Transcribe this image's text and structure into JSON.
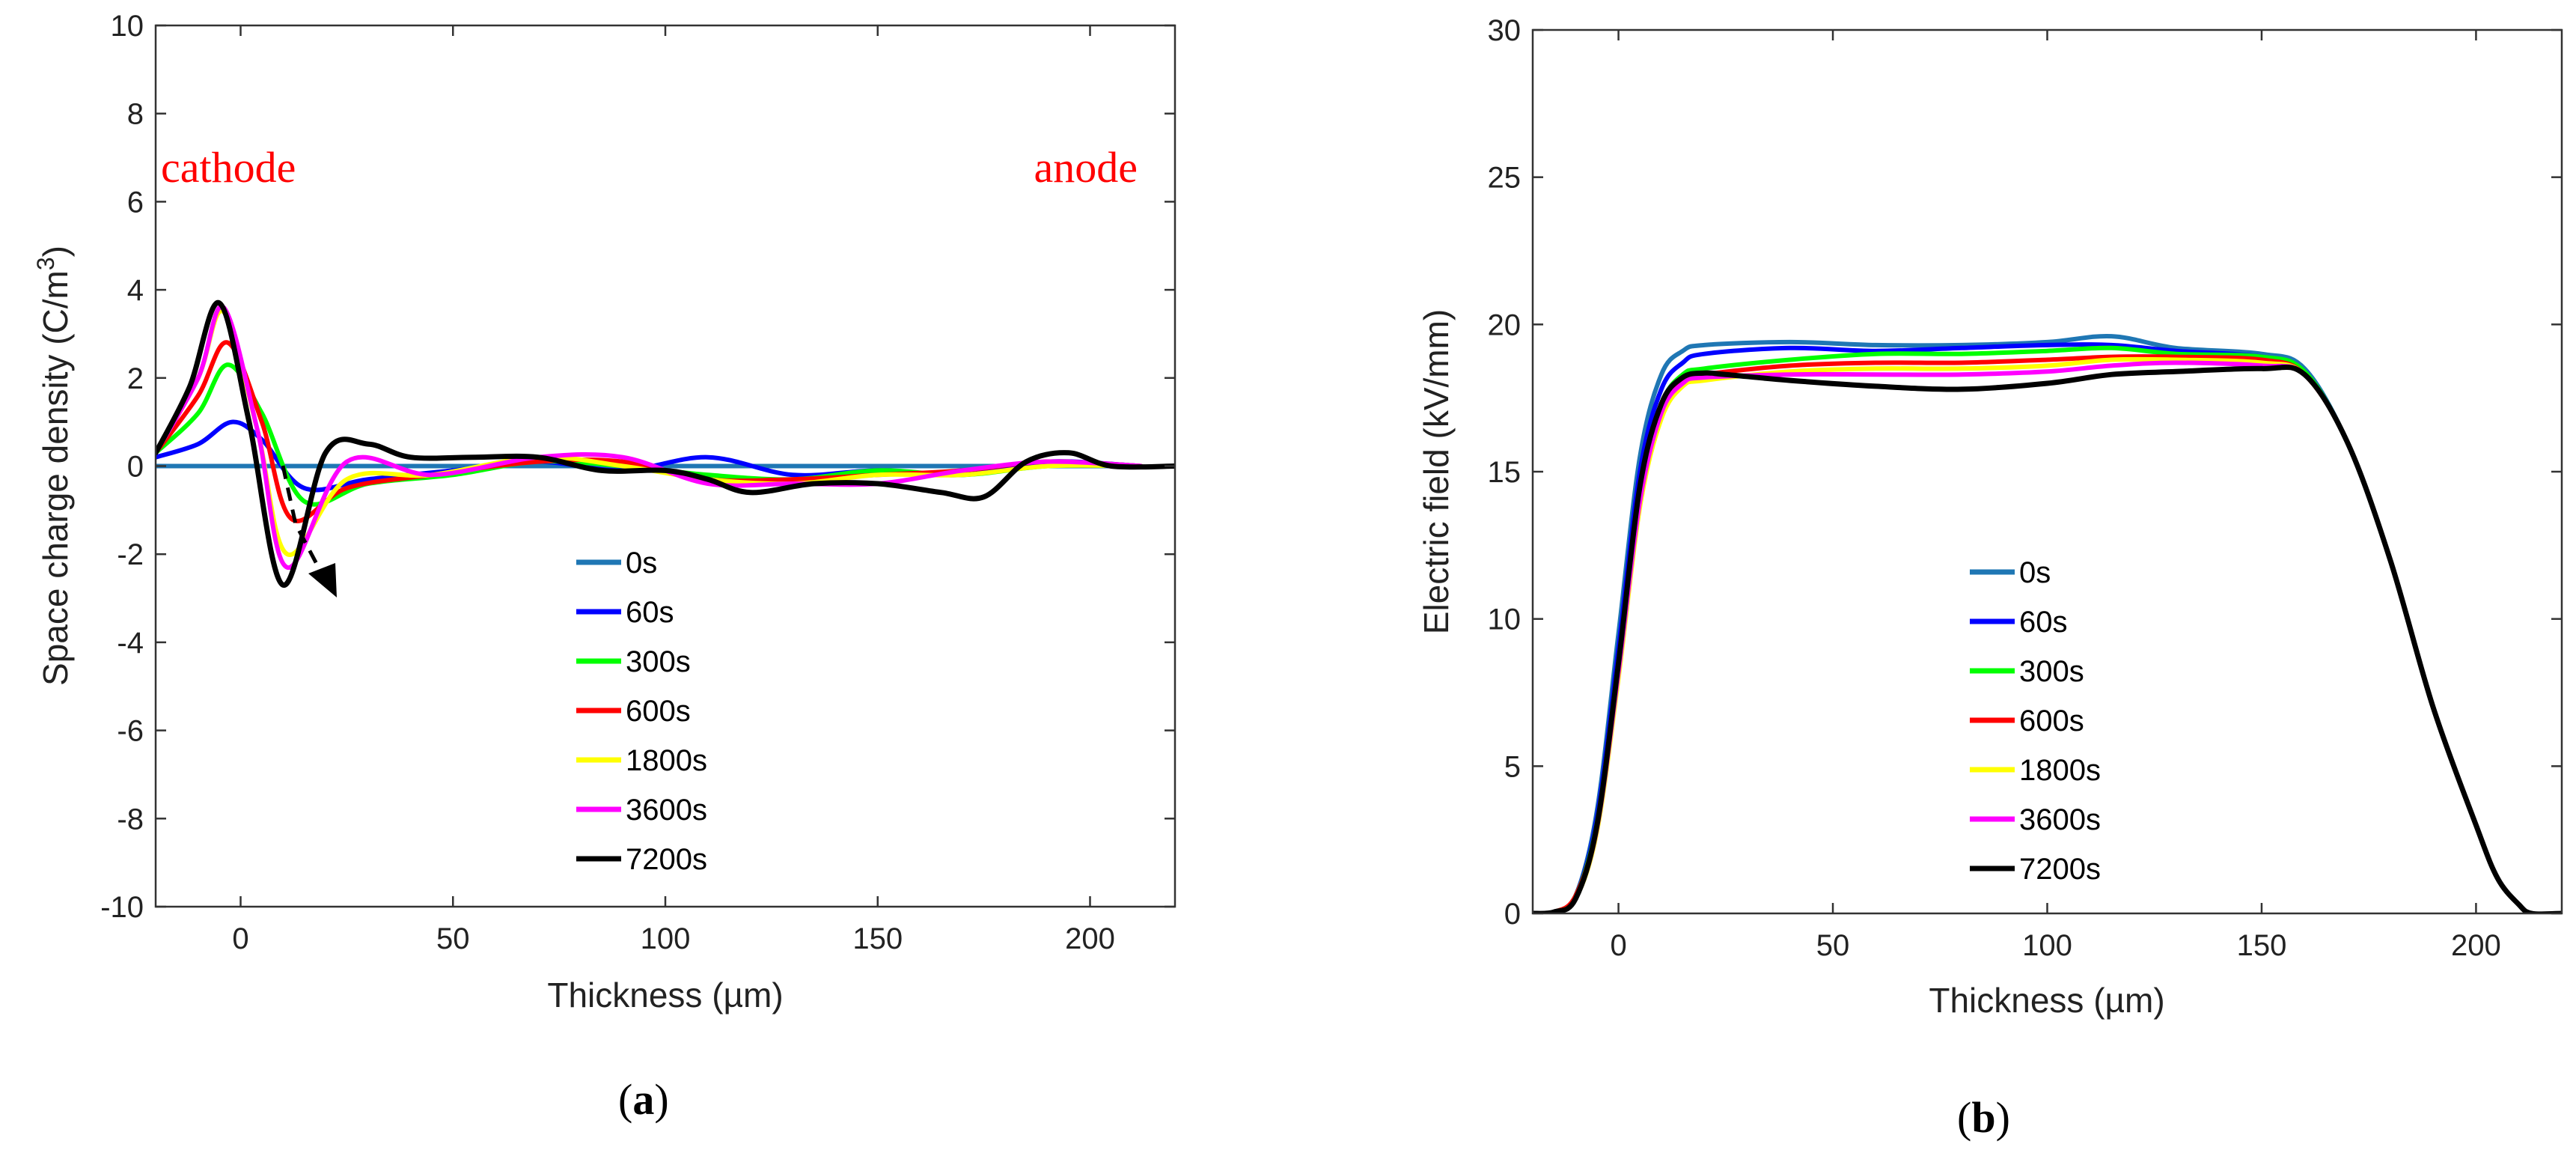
{
  "figure": {
    "panel_a_label": {
      "open": "(",
      "letter": "a",
      "close": ")"
    },
    "panel_b_label": {
      "open": "(",
      "letter": "b",
      "close": ")"
    }
  },
  "chart_data": [
    {
      "type": "line",
      "id": "a",
      "xlabel": "Thickness (µm)",
      "ylabel": "Space charge density (C/m",
      "ylabel_sup": "3",
      "ylabel_close": ")",
      "xlim": [
        -20,
        220
      ],
      "ylim": [
        -10,
        10
      ],
      "xticks": [
        0,
        50,
        100,
        150,
        200
      ],
      "yticks": [
        -10,
        -8,
        -6,
        -4,
        -2,
        0,
        2,
        4,
        6,
        8,
        10
      ],
      "annotations": {
        "left": "cathode",
        "right": "anode"
      },
      "legend_position": "center",
      "series": [
        {
          "name": "0s",
          "color": "#1f77b4",
          "x": [
            -20,
            0,
            50,
            100,
            150,
            200,
            212
          ],
          "y": [
            0,
            0,
            0,
            0,
            0,
            0,
            0
          ]
        },
        {
          "name": "60s",
          "color": "#0000ff",
          "x": [
            -20,
            -10,
            -2,
            5,
            15,
            30,
            50,
            70,
            90,
            110,
            130,
            150,
            170,
            190,
            212
          ],
          "y": [
            0.2,
            0.5,
            1.0,
            0.6,
            -0.5,
            -0.3,
            -0.1,
            0.1,
            -0.1,
            0.2,
            -0.2,
            -0.1,
            -0.2,
            0.1,
            0
          ]
        },
        {
          "name": "300s",
          "color": "#00ff00",
          "x": [
            -20,
            -10,
            -3,
            5,
            15,
            30,
            50,
            70,
            90,
            110,
            130,
            150,
            170,
            190,
            212
          ],
          "y": [
            0.3,
            1.2,
            2.3,
            1.2,
            -0.8,
            -0.4,
            -0.2,
            0.1,
            0,
            -0.2,
            -0.3,
            -0.1,
            -0.2,
            0,
            0
          ]
        },
        {
          "name": "600s",
          "color": "#ff0000",
          "x": [
            -20,
            -10,
            -3,
            5,
            12,
            25,
            45,
            70,
            90,
            110,
            130,
            150,
            170,
            190,
            212
          ],
          "y": [
            0.3,
            1.6,
            2.8,
            1.0,
            -1.2,
            -0.5,
            -0.2,
            0.1,
            0.1,
            -0.3,
            -0.3,
            -0.2,
            -0.1,
            0.1,
            0
          ]
        },
        {
          "name": "1800s",
          "color": "#ffff00",
          "x": [
            -20,
            -10,
            -4,
            4,
            11,
            25,
            45,
            70,
            90,
            110,
            130,
            150,
            170,
            190,
            212
          ],
          "y": [
            0.3,
            2.0,
            3.5,
            0.8,
            -2.0,
            -0.3,
            -0.2,
            0.2,
            0,
            -0.3,
            -0.4,
            -0.2,
            -0.2,
            0,
            0
          ]
        },
        {
          "name": "3600s",
          "color": "#ff00ff",
          "x": [
            -20,
            -10,
            -4,
            4,
            11,
            25,
            45,
            70,
            90,
            110,
            130,
            150,
            170,
            190,
            212
          ],
          "y": [
            0.3,
            2.0,
            3.6,
            0.8,
            -2.3,
            0.1,
            -0.2,
            0.2,
            0.2,
            -0.4,
            -0.4,
            -0.4,
            -0.1,
            0.1,
            0
          ]
        },
        {
          "name": "7200s",
          "color": "#000000",
          "x": [
            -20,
            -12,
            -5,
            2,
            10,
            20,
            30,
            40,
            55,
            70,
            85,
            100,
            110,
            120,
            135,
            150,
            165,
            175,
            185,
            195,
            205,
            220
          ],
          "y": [
            0.3,
            1.8,
            3.7,
            1.0,
            -2.7,
            0.3,
            0.5,
            0.2,
            0.2,
            0.2,
            -0.1,
            -0.1,
            -0.3,
            -0.6,
            -0.4,
            -0.4,
            -0.6,
            -0.7,
            0.1,
            0.3,
            0,
            0
          ]
        }
      ]
    },
    {
      "type": "line",
      "id": "b",
      "xlabel": "Thickness (µm)",
      "ylabel": "Electric field (kV/mm)",
      "xlim": [
        -20,
        220
      ],
      "ylim": [
        0,
        30
      ],
      "xticks": [
        0,
        50,
        100,
        150,
        200
      ],
      "yticks": [
        0,
        5,
        10,
        15,
        20,
        25,
        30
      ],
      "legend_position": "center",
      "series": [
        {
          "name": "0s",
          "color": "#1f77b4",
          "x": [
            -20,
            -15,
            -10,
            -5,
            0,
            5,
            10,
            15,
            20,
            40,
            60,
            80,
            100,
            115,
            130,
            150,
            160,
            170,
            180,
            190,
            200,
            205,
            210,
            213,
            220
          ],
          "y": [
            0,
            0.05,
            0.6,
            3.5,
            9.5,
            15.5,
            18.3,
            19.1,
            19.3,
            19.4,
            19.3,
            19.3,
            19.4,
            19.6,
            19.2,
            19.0,
            18.5,
            16.0,
            12.0,
            7.0,
            3.0,
            1.2,
            0.3,
            0,
            0
          ]
        },
        {
          "name": "60s",
          "color": "#0000ff",
          "x": [
            -20,
            -15,
            -10,
            -5,
            0,
            5,
            10,
            15,
            20,
            40,
            60,
            80,
            100,
            115,
            130,
            150,
            160,
            170,
            180,
            190,
            200,
            205,
            210,
            213,
            220
          ],
          "y": [
            0,
            0.05,
            0.6,
            3.3,
            9.0,
            15.0,
            17.8,
            18.7,
            19.0,
            19.2,
            19.1,
            19.2,
            19.3,
            19.3,
            19.1,
            18.9,
            18.4,
            16.0,
            12.0,
            7.0,
            3.0,
            1.2,
            0.3,
            0,
            0
          ]
        },
        {
          "name": "300s",
          "color": "#00ff00",
          "x": [
            -20,
            -15,
            -10,
            -5,
            0,
            5,
            10,
            15,
            20,
            40,
            60,
            80,
            100,
            115,
            130,
            150,
            160,
            170,
            180,
            190,
            200,
            205,
            210,
            213,
            220
          ],
          "y": [
            0,
            0.05,
            0.6,
            3.1,
            8.6,
            14.5,
            17.3,
            18.3,
            18.5,
            18.8,
            19.0,
            19.0,
            19.1,
            19.2,
            19.0,
            18.9,
            18.4,
            16.0,
            12.0,
            7.0,
            3.0,
            1.2,
            0.3,
            0,
            0
          ]
        },
        {
          "name": "600s",
          "color": "#ff0000",
          "x": [
            -20,
            -15,
            -10,
            -5,
            0,
            5,
            10,
            15,
            20,
            40,
            60,
            80,
            100,
            115,
            130,
            150,
            160,
            170,
            180,
            190,
            200,
            205,
            210,
            213,
            220
          ],
          "y": [
            0,
            0.05,
            0.6,
            3.0,
            8.4,
            14.2,
            17.0,
            18.1,
            18.3,
            18.6,
            18.7,
            18.7,
            18.8,
            18.9,
            18.9,
            18.8,
            18.3,
            16.0,
            12.0,
            7.0,
            3.0,
            1.2,
            0.3,
            0,
            0
          ]
        },
        {
          "name": "1800s",
          "color": "#ffff00",
          "x": [
            -20,
            -15,
            -10,
            -5,
            0,
            5,
            10,
            15,
            20,
            40,
            60,
            80,
            100,
            115,
            130,
            150,
            160,
            170,
            180,
            190,
            200,
            205,
            210,
            213,
            220
          ],
          "y": [
            0,
            0.05,
            0.5,
            2.8,
            8.0,
            13.8,
            16.8,
            17.9,
            18.1,
            18.4,
            18.5,
            18.5,
            18.6,
            18.8,
            18.8,
            18.7,
            18.3,
            16.0,
            12.0,
            7.0,
            3.0,
            1.2,
            0.3,
            0,
            0
          ]
        },
        {
          "name": "3600s",
          "color": "#ff00ff",
          "x": [
            -20,
            -15,
            -10,
            -5,
            0,
            5,
            10,
            15,
            20,
            40,
            60,
            80,
            100,
            115,
            130,
            150,
            160,
            170,
            180,
            190,
            200,
            205,
            210,
            213,
            220
          ],
          "y": [
            0,
            0.05,
            0.5,
            2.9,
            8.2,
            14.0,
            17.0,
            18.0,
            18.2,
            18.3,
            18.3,
            18.3,
            18.4,
            18.6,
            18.7,
            18.6,
            18.3,
            16.0,
            12.0,
            7.0,
            3.0,
            1.2,
            0.3,
            0,
            0
          ]
        },
        {
          "name": "7200s",
          "color": "#000000",
          "x": [
            -20,
            -15,
            -10,
            -5,
            0,
            5,
            10,
            15,
            20,
            25,
            40,
            60,
            80,
            100,
            115,
            130,
            150,
            160,
            170,
            180,
            190,
            200,
            205,
            210,
            213,
            220
          ],
          "y": [
            0,
            0.05,
            0.5,
            3.0,
            8.5,
            14.5,
            17.3,
            18.2,
            18.35,
            18.3,
            18.1,
            17.9,
            17.8,
            18.0,
            18.3,
            18.4,
            18.5,
            18.3,
            16.0,
            12.0,
            7.0,
            3.0,
            1.2,
            0.3,
            0,
            0
          ]
        }
      ]
    }
  ]
}
